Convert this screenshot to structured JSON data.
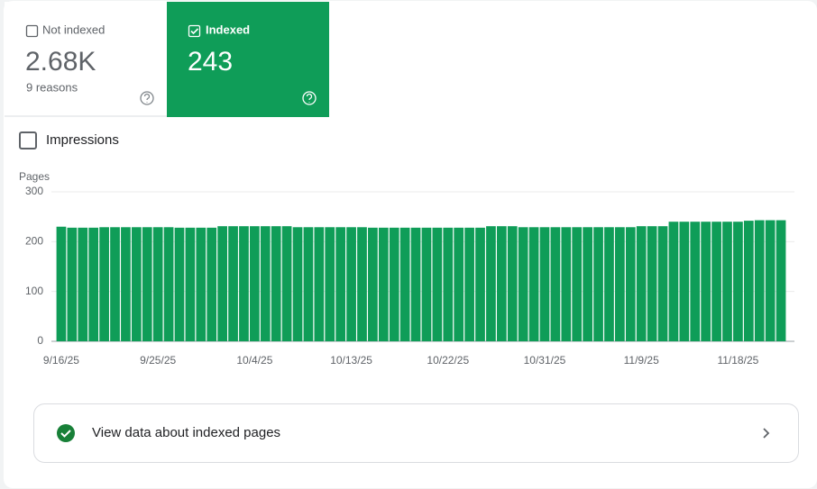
{
  "tabs": [
    {
      "label": "Not indexed",
      "value": "2.68K",
      "sublabel": "9 reasons"
    },
    {
      "label": "Indexed",
      "value": "243"
    }
  ],
  "impressions_label": "Impressions",
  "action_button": "View data about indexed pages",
  "chart_data": {
    "type": "bar",
    "y_label": "Pages",
    "color": "#0f9d58",
    "grid": true,
    "ylim": [
      0,
      300
    ],
    "yticks": [
      0,
      100,
      200,
      300
    ],
    "categories": [
      "9/16/25",
      null,
      null,
      null,
      null,
      null,
      null,
      null,
      null,
      "9/25/25",
      null,
      null,
      null,
      null,
      null,
      null,
      null,
      null,
      "10/4/25",
      null,
      null,
      null,
      null,
      null,
      null,
      null,
      null,
      "10/13/25",
      null,
      null,
      null,
      null,
      null,
      null,
      null,
      null,
      "10/22/25",
      null,
      null,
      null,
      null,
      null,
      null,
      null,
      null,
      "10/31/25",
      null,
      null,
      null,
      null,
      null,
      null,
      null,
      null,
      "11/9/25",
      null,
      null,
      null,
      null,
      null,
      null,
      null,
      null,
      "11/18/25",
      null,
      null,
      null,
      null
    ],
    "values": [
      230,
      228,
      228,
      228,
      229,
      229,
      229,
      229,
      229,
      229,
      229,
      228,
      228,
      228,
      228,
      231,
      231,
      231,
      231,
      231,
      231,
      231,
      229,
      229,
      229,
      229,
      229,
      229,
      229,
      228,
      228,
      228,
      228,
      228,
      228,
      228,
      228,
      228,
      228,
      228,
      231,
      231,
      231,
      229,
      229,
      229,
      229,
      229,
      229,
      229,
      229,
      229,
      229,
      229,
      231,
      231,
      231,
      240,
      240,
      240,
      240,
      240,
      240,
      240,
      242,
      243,
      243,
      243
    ]
  }
}
